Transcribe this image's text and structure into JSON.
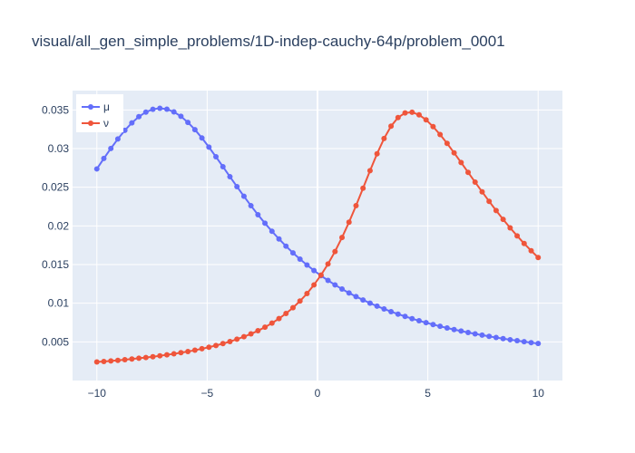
{
  "chart_data": {
    "type": "line",
    "title": "visual/all_gen_simple_problems/1D-indep-cauchy-64p/problem_0001",
    "xlabel": "",
    "ylabel": "",
    "xlim": [
      -11.1,
      11.1
    ],
    "ylim": [
      0,
      0.0375
    ],
    "x_ticks": [
      -10,
      -5,
      0,
      5,
      10
    ],
    "x_tick_labels": [
      "−10",
      "−5",
      "0",
      "5",
      "10"
    ],
    "y_ticks": [
      0.005,
      0.01,
      0.015,
      0.02,
      0.025,
      0.03,
      0.035
    ],
    "y_tick_labels": [
      "0.005",
      "0.01",
      "0.015",
      "0.02",
      "0.025",
      "0.03",
      "0.035"
    ],
    "grid": true,
    "legend_position": "top-left",
    "n_points": 64,
    "x_range": [
      -10,
      10
    ],
    "series": [
      {
        "name": "μ",
        "color": "#636efa",
        "values": [
          0.02737,
          0.02872,
          0.03002,
          0.03124,
          0.03236,
          0.03333,
          0.03413,
          0.03472,
          0.03509,
          0.03522,
          0.0351,
          0.03474,
          0.03417,
          0.03339,
          0.03245,
          0.03137,
          0.03019,
          0.02894,
          0.02766,
          0.02636,
          0.02508,
          0.02383,
          0.02261,
          0.02145,
          0.02034,
          0.0193,
          0.01831,
          0.01738,
          0.01651,
          0.0157,
          0.01494,
          0.01423,
          0.01356,
          0.01295,
          0.01237,
          0.01183,
          0.01133,
          0.01086,
          0.01042,
          0.01001,
          0.00962,
          0.00926,
          0.00891,
          0.00859,
          0.00829,
          0.008,
          0.00773,
          0.00748,
          0.00724,
          0.00701,
          0.0068,
          0.00659,
          0.0064,
          0.00621,
          0.00604,
          0.00587,
          0.00571,
          0.00556,
          0.00542,
          0.00528,
          0.00515,
          0.00502,
          0.0049,
          0.00479
        ]
      },
      {
        "name": "ν",
        "color": "#ef553b",
        "values": [
          0.0024,
          0.00246,
          0.00254,
          0.00261,
          0.0027,
          0.00278,
          0.00288,
          0.00298,
          0.00308,
          0.0032,
          0.00332,
          0.00345,
          0.0036,
          0.00375,
          0.00392,
          0.00411,
          0.00431,
          0.00453,
          0.00477,
          0.00504,
          0.00534,
          0.00567,
          0.00603,
          0.00644,
          0.0069,
          0.00742,
          0.00801,
          0.00867,
          0.00942,
          0.01028,
          0.01125,
          0.01237,
          0.01364,
          0.01507,
          0.01669,
          0.0185,
          0.02048,
          0.02262,
          0.02487,
          0.02714,
          0.02933,
          0.0313,
          0.0329,
          0.03402,
          0.03461,
          0.0347,
          0.03437,
          0.03372,
          0.03284,
          0.03181,
          0.03067,
          0.02945,
          0.0282,
          0.02693,
          0.02566,
          0.02441,
          0.02318,
          0.02199,
          0.02084,
          0.01975,
          0.01871,
          0.01772,
          0.01679,
          0.01591
        ]
      }
    ]
  }
}
